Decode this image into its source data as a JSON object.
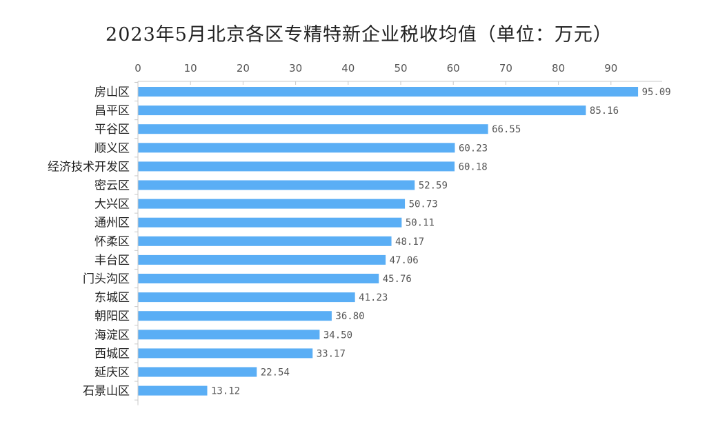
{
  "chart_data": {
    "type": "bar",
    "orientation": "horizontal",
    "title": "2023年5月北京各区专精特新企业税收均值（单位：万元）",
    "categories": [
      "房山区",
      "昌平区",
      "平谷区",
      "顺义区",
      "经济技术开发区",
      "密云区",
      "大兴区",
      "通州区",
      "怀柔区",
      "丰台区",
      "门头沟区",
      "东城区",
      "朝阳区",
      "海淀区",
      "西城区",
      "延庆区",
      "石景山区"
    ],
    "values": [
      95.09,
      85.16,
      66.55,
      60.23,
      60.18,
      52.59,
      50.73,
      50.11,
      48.17,
      47.06,
      45.76,
      41.23,
      36.8,
      34.5,
      33.17,
      22.54,
      13.12
    ],
    "value_labels": [
      "95.09",
      "85.16",
      "66.55",
      "60.23",
      "60.18",
      "52.59",
      "50.73",
      "50.11",
      "48.17",
      "47.06",
      "45.76",
      "41.23",
      "36.80",
      "34.50",
      "33.17",
      "22.54",
      "13.12"
    ],
    "xticks": [
      "0",
      "10",
      "20",
      "30",
      "40",
      "50",
      "60",
      "70",
      "80",
      "90"
    ],
    "xlim": [
      0,
      100
    ],
    "axis_position": "top",
    "grid": false,
    "legend": "none",
    "bar_color": "#5aaef5",
    "axis_color": "#c8c8c8"
  }
}
